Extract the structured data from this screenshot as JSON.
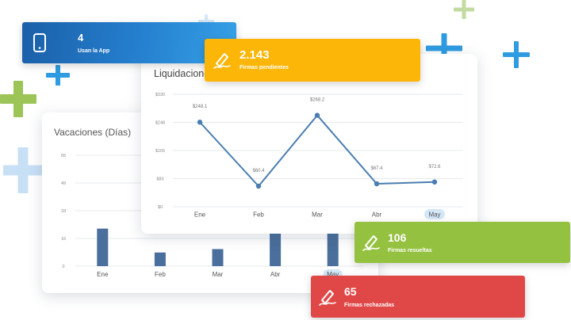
{
  "colors": {
    "line": "#4a7db0",
    "bar": "#4a6f9c",
    "app_badge": "#1f6cc0",
    "pending_badge": "#fbb608",
    "resolved_badge": "#95c141",
    "rejected_badge": "#e04848"
  },
  "stats": {
    "app_users": {
      "value": "4",
      "label": "Usan la App",
      "icon": "phone-icon"
    },
    "pending": {
      "value": "2.143",
      "label": "Firmas pendientes",
      "icon": "signature-icon"
    },
    "resolved": {
      "value": "106",
      "label": "Firmas resueltas",
      "icon": "signature-icon"
    },
    "rejected": {
      "value": "65",
      "label": "Firmas rechazadas",
      "icon": "signature-icon"
    }
  },
  "vacations": {
    "title": "Vacaciones (Días)",
    "chart_data": {
      "type": "bar",
      "title": "Vacaciones (Días)",
      "categories": [
        "Ene",
        "Feb",
        "Mar",
        "Abr",
        "May"
      ],
      "values": [
        22,
        8,
        10,
        40,
        28
      ],
      "ylim": [
        0,
        65
      ],
      "yticks": [
        "65",
        "49",
        "33",
        "16",
        "0"
      ],
      "highlighted": "May",
      "grid": true
    }
  },
  "settlements": {
    "title": "Liquidaciones",
    "chart_data": {
      "type": "line",
      "title": "Liquidaciones",
      "categories": [
        "Ene",
        "Feb",
        "Mar",
        "Abr",
        "May"
      ],
      "values": [
        248.1,
        60.4,
        268.2,
        67.4,
        72.6
      ],
      "point_labels": [
        "$248.1",
        "$60.4",
        "$268.2",
        "$67.4",
        "$72.6"
      ],
      "ylim": [
        0,
        330
      ],
      "yticks": [
        "$330",
        "$248",
        "$165",
        "$83",
        "$0"
      ],
      "highlighted": "May",
      "grid": true
    }
  }
}
